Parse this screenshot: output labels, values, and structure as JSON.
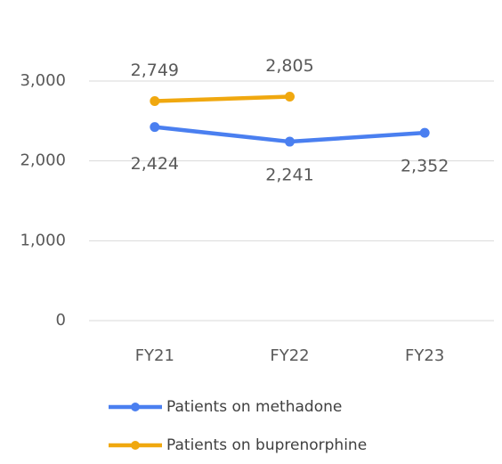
{
  "chart_data": {
    "type": "line",
    "categories": [
      "FY21",
      "FY22",
      "FY23"
    ],
    "series": [
      {
        "name": "Patients on methadone",
        "color": "#4a7ff0",
        "values": [
          2424,
          2241,
          2352
        ],
        "value_labels": [
          "2,424",
          "2,241",
          "2,352"
        ],
        "label_position": "below"
      },
      {
        "name": "Patients on buprenorphine",
        "color": "#f0a80f",
        "values": [
          2749,
          2805,
          null
        ],
        "value_labels": [
          "2,749",
          "2,805",
          null
        ],
        "label_position": "above"
      }
    ],
    "ylim": [
      0,
      3000
    ],
    "yticks": [
      0,
      {
        "value": 1000,
        "label": "1,000"
      },
      {
        "value": 2000,
        "label": "2,000"
      },
      {
        "value": 3000,
        "label": "3,000"
      }
    ],
    "grid": true,
    "legend": "bottom"
  }
}
